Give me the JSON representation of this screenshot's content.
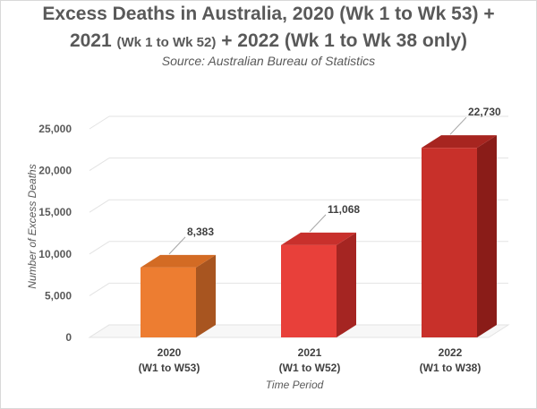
{
  "chart_data": {
    "type": "bar",
    "title_line1": "Excess Deaths in Australia, 2020 (Wk 1 to Wk 53) +",
    "title_line2_a": "2021",
    "title_line2_b": "(Wk 1 to Wk 52)",
    "title_line2_c": "+ 2022 (Wk 1 to Wk 38 only)",
    "subtitle": "Source: Australian Bureau of Statistics",
    "categories": [
      {
        "line1": "2020",
        "line2": "(W1 to W53)"
      },
      {
        "line1": "2021",
        "line2": "(W1 to W52)"
      },
      {
        "line1": "2022",
        "line2": "(W1 to W38)"
      }
    ],
    "values": [
      8383,
      11068,
      22730
    ],
    "value_labels": [
      "8,383",
      "11,068",
      "22,730"
    ],
    "bar_colors": [
      {
        "front": "#ED7D31",
        "side": "#A85520",
        "top": "#D36B24"
      },
      {
        "front": "#E8403A",
        "side": "#A52522",
        "top": "#C8302C"
      },
      {
        "front": "#C8302A",
        "side": "#8A1C18",
        "top": "#A72520"
      }
    ],
    "ylabel": "Number of Excess Deaths",
    "xlabel": "Time Period",
    "ylim": [
      0,
      25000
    ],
    "yticks": [
      0,
      5000,
      10000,
      15000,
      20000,
      25000
    ],
    "ytick_labels": [
      "0",
      "5,000",
      "10,000",
      "15,000",
      "20,000",
      "25,000"
    ],
    "grid": true
  }
}
